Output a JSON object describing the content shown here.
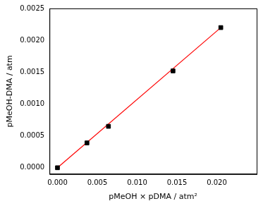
{
  "chart_data": {
    "type": "scatter",
    "x_label": "pMeOH × pDMA / atm²",
    "y_label": "pMeOH-DMA / atm",
    "series": [
      {
        "type": "scatter",
        "marker": "square",
        "color": "#000000",
        "x": [
          0,
          0.0037,
          0.0064,
          0.0145,
          0.0205
        ],
        "values": [
          0,
          0.00039,
          0.00065,
          0.00152,
          0.0022
        ]
      },
      {
        "type": "line",
        "line_style": "solid",
        "color": "#ff0000",
        "x": [
          0,
          0.0205
        ],
        "values": [
          0,
          0.0022
        ]
      }
    ],
    "xlim": [
      -0.001,
      0.025
    ],
    "xticks": [
      {
        "value": 0,
        "label": "0.000"
      },
      {
        "value": 0.005,
        "label": "0.005"
      },
      {
        "value": 0.01,
        "label": "0.010"
      },
      {
        "value": 0.015,
        "label": "0.015"
      },
      {
        "value": 0.02,
        "label": "0.020"
      }
    ],
    "ylim": [
      -0.0001,
      0.0025
    ],
    "yticks": [
      {
        "value": 0,
        "label": "0.0000"
      },
      {
        "value": 0.0005,
        "label": "0.0005"
      },
      {
        "value": 0.001,
        "label": "0.0010"
      },
      {
        "value": 0.0015,
        "label": "0.0015"
      },
      {
        "value": 0.002,
        "label": "0.0020"
      },
      {
        "value": 0.0025,
        "label": "0.0025"
      }
    ],
    "grid": false
  }
}
